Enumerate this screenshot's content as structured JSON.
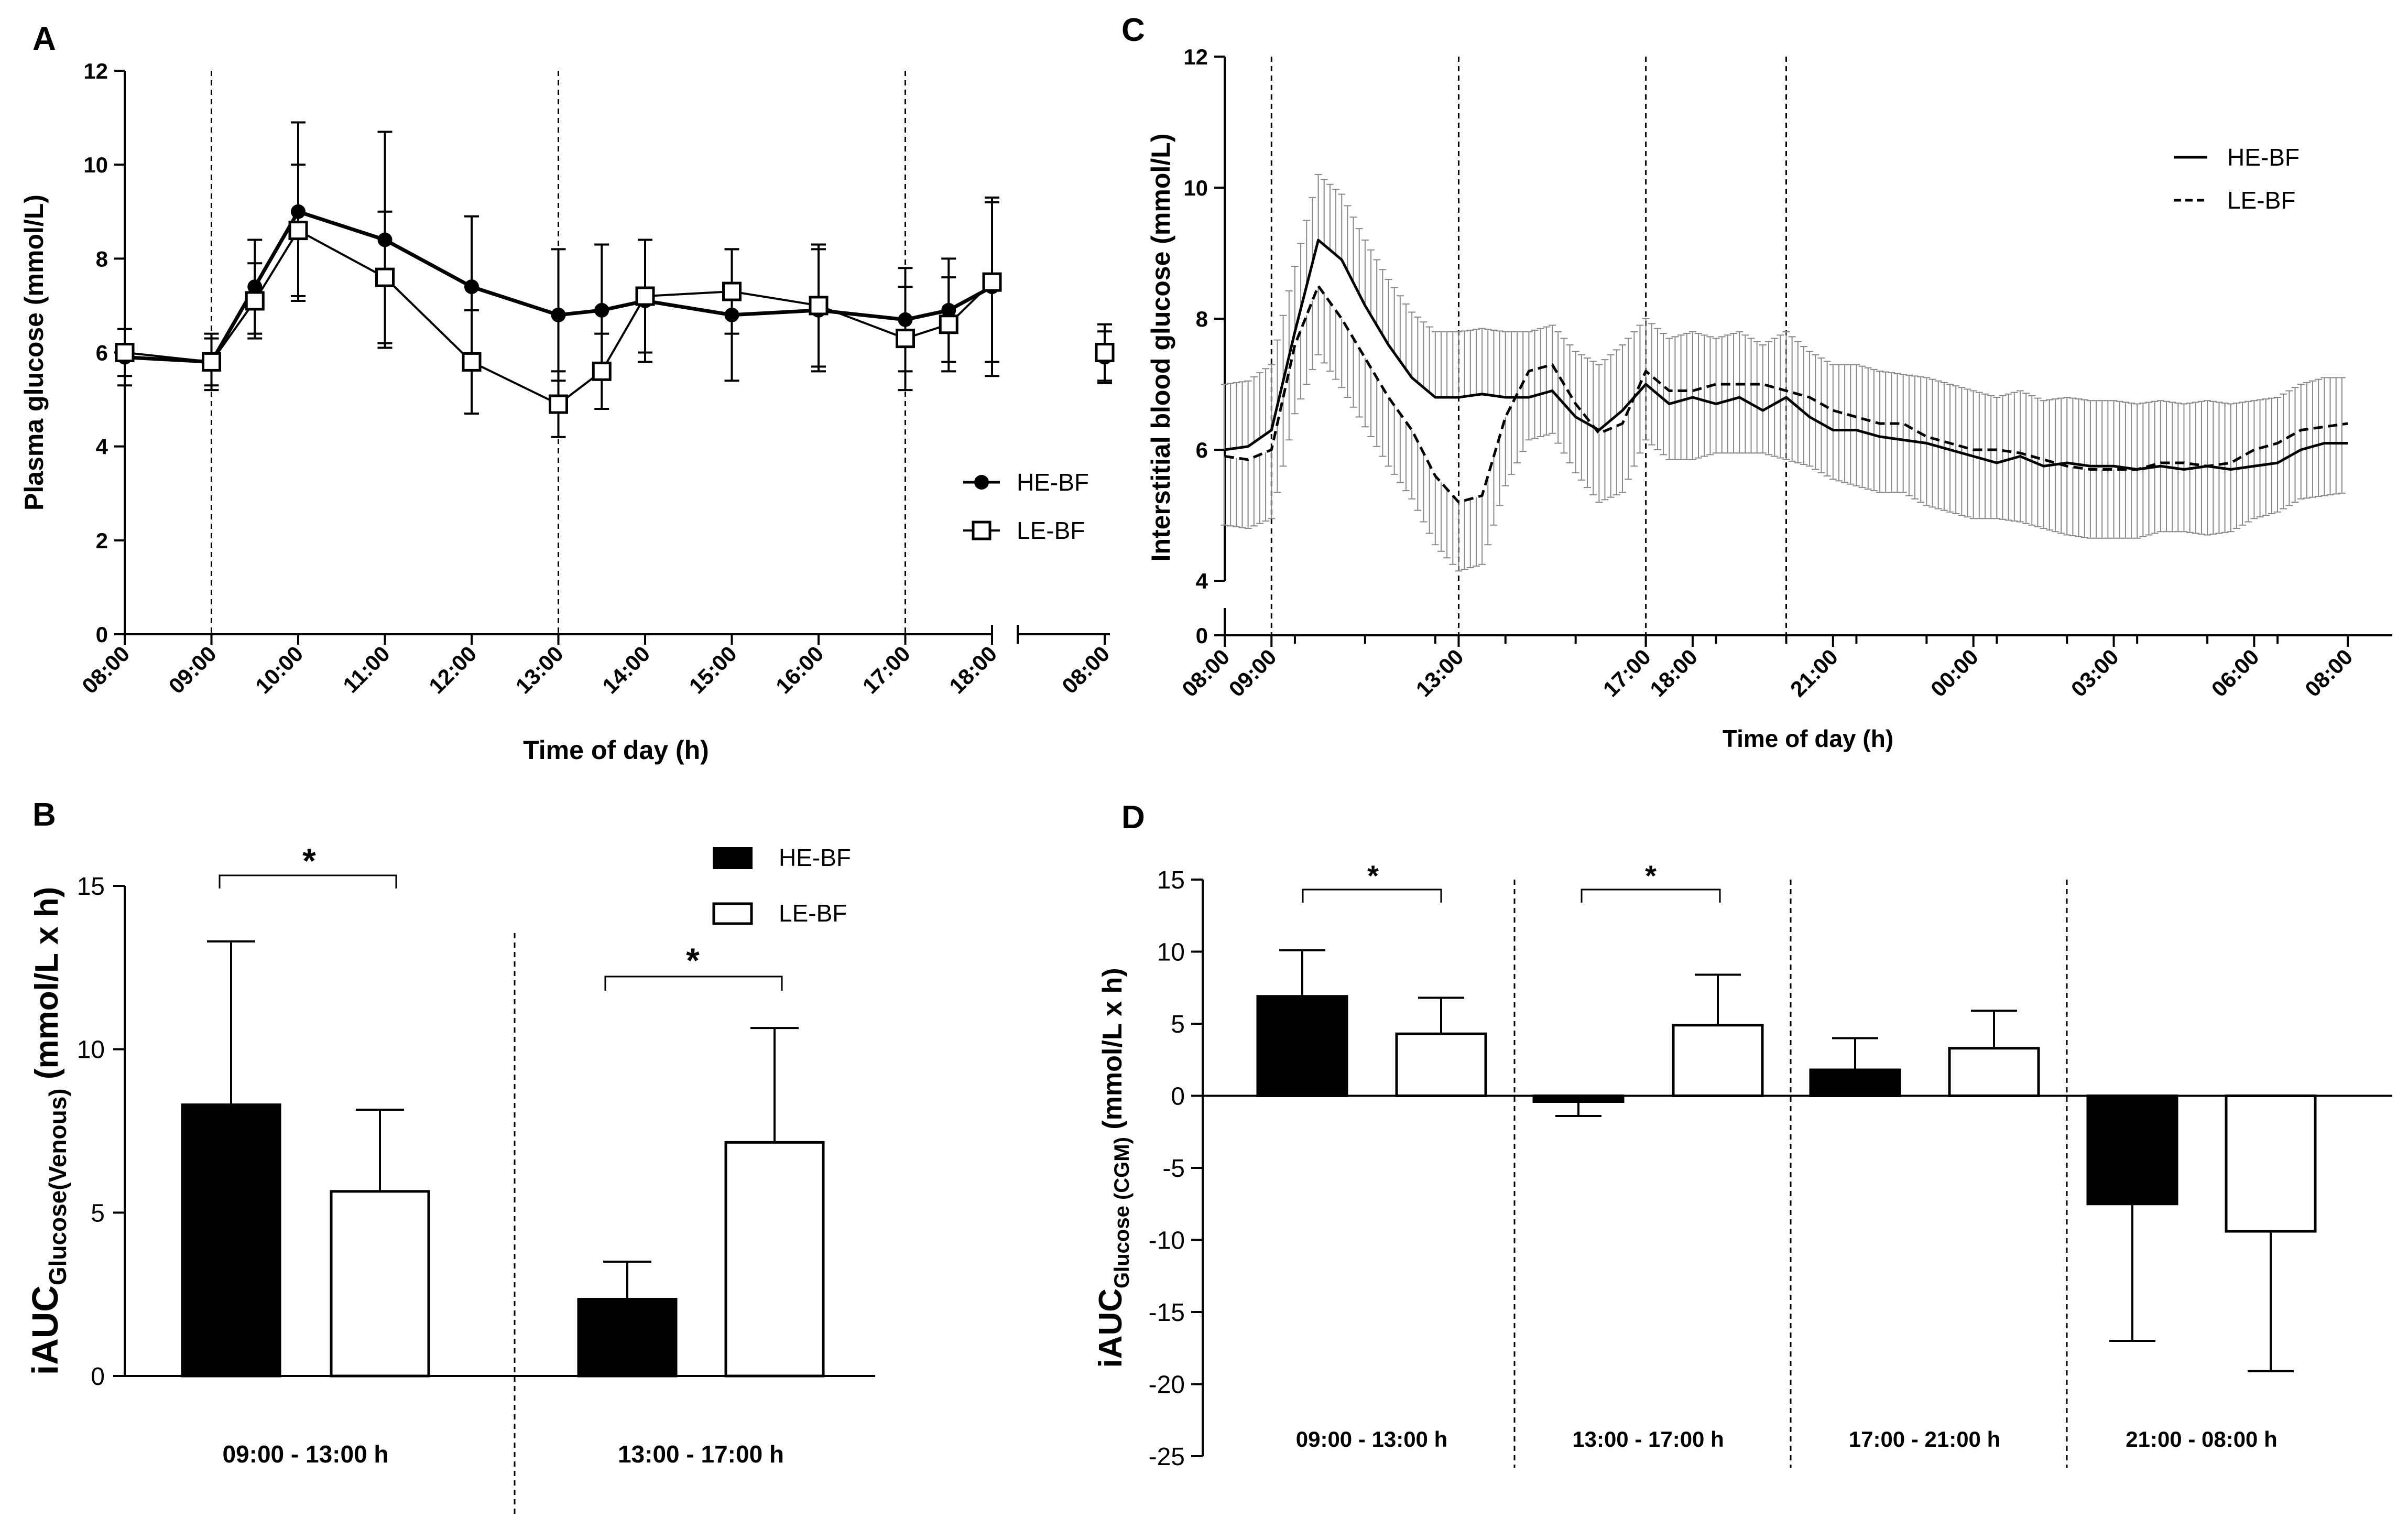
{
  "chart_data": [
    {
      "panel": "A",
      "type": "line",
      "xlabel": "Time of day (h)",
      "ylabel": "Plasma glucose  (mmol/L)",
      "ylim": [
        0,
        12
      ],
      "yticks": [
        "0",
        "2",
        "4",
        "6",
        "8",
        "10",
        "12"
      ],
      "xticks": [
        "08:00",
        "09:00",
        "10:00",
        "11:00",
        "12:00",
        "13:00",
        "14:00",
        "15:00",
        "16:00",
        "17:00",
        "18:00"
      ],
      "xticks_break": [
        "08:00"
      ],
      "x": [
        8,
        9,
        9.5,
        10,
        11,
        12,
        13,
        13.5,
        14,
        15,
        16,
        17,
        17.5,
        18
      ],
      "series": [
        {
          "name": "HE-BF",
          "marker": "filled-circle",
          "values": [
            5.9,
            5.8,
            7.4,
            9.0,
            8.4,
            7.4,
            6.8,
            6.9,
            7.1,
            6.8,
            6.9,
            6.7,
            6.9,
            7.4
          ],
          "errors": [
            0.6,
            0.5,
            1.0,
            1.9,
            2.3,
            1.5,
            1.4,
            1.4,
            1.3,
            1.4,
            1.3,
            1.1,
            1.1,
            1.9
          ],
          "next_day_value": 5.9,
          "next_day_error": 0.55
        },
        {
          "name": "LE-BF",
          "marker": "open-square",
          "values": [
            6.0,
            5.8,
            7.1,
            8.6,
            7.6,
            5.8,
            4.9,
            5.6,
            7.2,
            7.3,
            7.0,
            6.3,
            6.6,
            7.5
          ],
          "errors": [
            0.5,
            0.6,
            0.8,
            1.4,
            1.4,
            1.1,
            0.7,
            0.8,
            1.2,
            0.9,
            1.3,
            1.1,
            1.0,
            1.7
          ],
          "next_day_value": 6.0,
          "next_day_error": 0.6
        }
      ],
      "vlines": [
        9,
        13,
        17
      ],
      "legend": [
        "HE-BF",
        "LE-BF"
      ]
    },
    {
      "panel": "B",
      "type": "bar",
      "ylabel": "iAUC",
      "ylabel_sub": "Glucose(Venous)",
      "ylabel_unit": " (mmol/L x h)",
      "ylim": [
        0,
        15
      ],
      "yticks": [
        "0",
        "5",
        "10",
        "15"
      ],
      "categories": [
        "09:00 - 13:00 h",
        "13:00 - 17:00 h"
      ],
      "series": [
        {
          "name": "HE-BF",
          "values": [
            8.3,
            2.35
          ],
          "errors": [
            5.0,
            1.15
          ]
        },
        {
          "name": "LE-BF",
          "values": [
            5.65,
            7.15
          ],
          "errors": [
            2.5,
            3.5
          ]
        }
      ],
      "significance": [
        "*",
        "*"
      ],
      "legend": [
        "HE-BF",
        "LE-BF"
      ]
    },
    {
      "panel": "C",
      "type": "line",
      "xlabel": "Time of day (h)",
      "ylabel": "Interstitial blood glucose (mmol/L)",
      "ylim": [
        4,
        12
      ],
      "yticks": [
        "4",
        "6",
        "8",
        "10",
        "12"
      ],
      "ybreak_tick": "0",
      "xticks": [
        "08:00",
        "09:00",
        "13:00",
        "17:00",
        "18:00",
        "21:00",
        "00:00",
        "03:00",
        "06:00",
        "08:00"
      ],
      "x": [
        0,
        0.5,
        1,
        1.5,
        2,
        2.5,
        3,
        3.5,
        4,
        4.5,
        5,
        5.5,
        6,
        6.5,
        7,
        7.5,
        8,
        8.5,
        9,
        9.5,
        10,
        10.5,
        11,
        11.5,
        12,
        12.5,
        13,
        13.5,
        14,
        14.5,
        15,
        15.5,
        16,
        16.5,
        17,
        17.5,
        18,
        18.5,
        19,
        19.5,
        20,
        20.5,
        21,
        21.5,
        22,
        22.5,
        23,
        23.5,
        24
      ],
      "series": [
        {
          "name": "HE-BF",
          "style": "solid",
          "values": [
            6.0,
            6.05,
            6.3,
            7.8,
            9.2,
            8.9,
            8.2,
            7.6,
            7.1,
            6.8,
            6.8,
            6.85,
            6.8,
            6.8,
            6.9,
            6.5,
            6.3,
            6.6,
            7.0,
            6.7,
            6.8,
            6.7,
            6.8,
            6.6,
            6.8,
            6.5,
            6.3,
            6.3,
            6.2,
            6.15,
            6.1,
            6.0,
            5.9,
            5.8,
            5.9,
            5.75,
            5.8,
            5.75,
            5.75,
            5.7,
            5.75,
            5.7,
            5.75,
            5.7,
            5.75,
            5.8,
            6.0,
            6.1,
            6.1
          ],
          "error": 1.0
        },
        {
          "name": "LE-BF",
          "style": "dashed",
          "values": [
            5.9,
            5.85,
            6.0,
            7.6,
            8.5,
            8.0,
            7.4,
            6.8,
            6.3,
            5.6,
            5.2,
            5.3,
            6.5,
            7.2,
            7.3,
            6.7,
            6.25,
            6.4,
            7.2,
            6.9,
            6.9,
            7.0,
            7.0,
            7.0,
            6.9,
            6.8,
            6.6,
            6.5,
            6.4,
            6.4,
            6.2,
            6.1,
            6.0,
            6.0,
            5.95,
            5.85,
            5.75,
            5.7,
            5.7,
            5.7,
            5.8,
            5.8,
            5.75,
            5.8,
            6.0,
            6.1,
            6.3,
            6.35,
            6.4
          ],
          "error": 1.05
        }
      ],
      "vlines": [
        1,
        5,
        9,
        12
      ],
      "legend": [
        "HE-BF",
        "LE-BF"
      ]
    },
    {
      "panel": "D",
      "type": "bar",
      "ylabel": "iAUC",
      "ylabel_sub": "Glucose (CGM)",
      "ylabel_unit": " (mmol/L x h)",
      "ylim": [
        -25,
        15
      ],
      "yticks": [
        "15",
        "10",
        "5",
        "0",
        "-5",
        "-10",
        "-15",
        "-20",
        "-25"
      ],
      "categories": [
        "09:00 - 13:00 h",
        "13:00 - 17:00 h",
        "17:00 - 21:00 h",
        "21:00 - 08:00 h"
      ],
      "series": [
        {
          "name": "HE-BF",
          "values": [
            6.9,
            -0.4,
            1.8,
            -7.5
          ],
          "errors": [
            3.2,
            1.0,
            2.2,
            9.5
          ]
        },
        {
          "name": "LE-BF",
          "values": [
            4.3,
            4.9,
            3.3,
            -9.4
          ],
          "errors": [
            2.5,
            3.5,
            2.6,
            9.7
          ]
        }
      ],
      "significance": [
        "*",
        "*"
      ]
    }
  ],
  "panel_labels": [
    "A",
    "B",
    "C",
    "D"
  ],
  "legend_labels": {
    "he": "HE-BF",
    "le": "LE-BF"
  },
  "colors": {
    "he_fill": "#000000",
    "le_fill": "#ffffff",
    "stroke": "#000000",
    "error_band": "#888888"
  }
}
